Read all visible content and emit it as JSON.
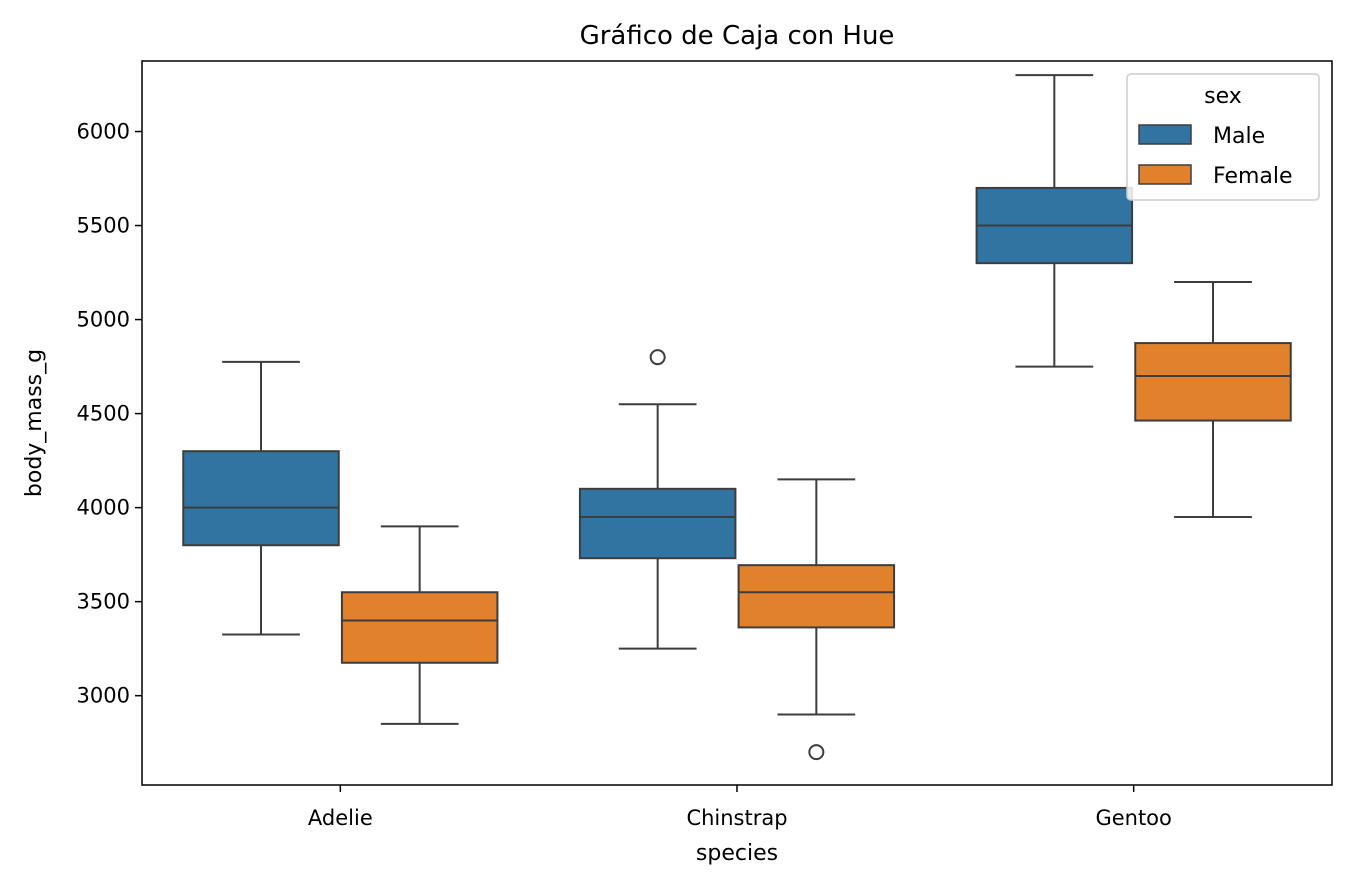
{
  "chart_data": {
    "type": "box",
    "title": "Gráfico de Caja con Hue",
    "xlabel": "species",
    "ylabel": "body_mass_g",
    "categories": [
      "Adelie",
      "Chinstrap",
      "Gentoo"
    ],
    "ylim": [
      2525,
      6375
    ],
    "yticks": [
      3000,
      3500,
      4000,
      4500,
      5000,
      5500,
      6000
    ],
    "legend": {
      "title": "sex",
      "placement": "top-right"
    },
    "colors": {
      "Male": "#3274a1",
      "Female": "#e1812c",
      "line": "#3d3d3d"
    },
    "series": [
      {
        "name": "Male",
        "boxes": [
          {
            "category": "Adelie",
            "whislo": 3325,
            "q1": 3800,
            "median": 4000,
            "q3": 4300,
            "whishi": 4775,
            "fliers": []
          },
          {
            "category": "Chinstrap",
            "whislo": 3250,
            "q1": 3731,
            "median": 3950,
            "q3": 4100,
            "whishi": 4550,
            "fliers": [
              4800
            ]
          },
          {
            "category": "Gentoo",
            "whislo": 4750,
            "q1": 5300,
            "median": 5500,
            "q3": 5700,
            "whishi": 6300,
            "fliers": []
          }
        ]
      },
      {
        "name": "Female",
        "boxes": [
          {
            "category": "Adelie",
            "whislo": 2850,
            "q1": 3175,
            "median": 3400,
            "q3": 3550,
            "whishi": 3900,
            "fliers": []
          },
          {
            "category": "Chinstrap",
            "whislo": 2900,
            "q1": 3363,
            "median": 3550,
            "q3": 3694,
            "whishi": 4150,
            "fliers": [
              2700
            ]
          },
          {
            "category": "Gentoo",
            "whislo": 3950,
            "q1": 4463,
            "median": 4700,
            "q3": 4875,
            "whishi": 5200,
            "fliers": []
          }
        ]
      }
    ]
  }
}
